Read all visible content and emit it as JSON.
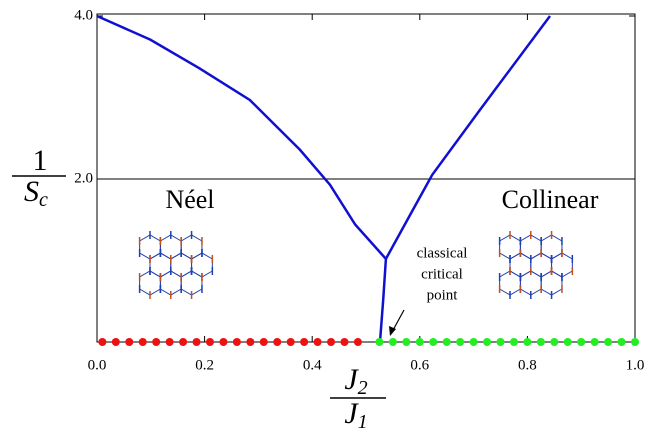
{
  "chart_data": {
    "type": "line",
    "xlim": [
      0,
      1.0
    ],
    "ylim": [
      0,
      4.0
    ],
    "xticks": [
      {
        "value": 0,
        "label": "0.0"
      },
      {
        "value": 0.2,
        "label": "0.2"
      },
      {
        "value": 0.4,
        "label": "0.4"
      },
      {
        "value": 0.6,
        "label": "0.6"
      },
      {
        "value": 0.8,
        "label": "0.8"
      },
      {
        "value": 1.0,
        "label": "1.0"
      }
    ],
    "yticks": [
      {
        "value": 2,
        "label": "2.0"
      },
      {
        "value": 4,
        "label": "4.0"
      }
    ],
    "reference_line": 2.0,
    "x_label": {
      "numerator": "J",
      "numerator_subscript": "2",
      "denominator": "J",
      "denominator_subscript": "1"
    },
    "y_label": {
      "numerator": "1",
      "denominator": "S",
      "denominator_subscript": "c"
    },
    "annotations": {
      "left_phase": "Néel",
      "right_phase": "Collinear",
      "critical_point": [
        "classical",
        "critical",
        "point"
      ]
    },
    "series": [
      {
        "mode": "line",
        "color": "#1010d0",
        "x": [
          0,
          0.099,
          0.19,
          0.284,
          0.377,
          0.433,
          0.48,
          0.537,
          0.532,
          0.526
        ],
        "values": [
          4.0,
          3.71,
          3.36,
          2.97,
          2.36,
          1.93,
          1.44,
          1.02,
          0.52,
          0
        ]
      },
      {
        "mode": "line",
        "color": "#1010d0",
        "x": [
          0.537,
          0.582,
          0.623,
          0.712,
          0.842
        ],
        "values": [
          1.02,
          1.56,
          2.05,
          2.85,
          4.0
        ]
      },
      {
        "mode": "markers",
        "color": "#ee1111",
        "x": [
          0.01,
          0.035,
          0.06,
          0.085,
          0.11,
          0.135,
          0.16,
          0.185,
          0.21,
          0.235,
          0.26,
          0.285,
          0.31,
          0.335,
          0.36,
          0.385,
          0.41,
          0.435,
          0.46,
          0.485
        ],
        "values": [
          0,
          0,
          0,
          0,
          0,
          0,
          0,
          0,
          0,
          0,
          0,
          0,
          0,
          0,
          0,
          0,
          0,
          0,
          0,
          0
        ]
      },
      {
        "mode": "markers",
        "color": "#22ee22",
        "x": [
          0.525,
          0.55,
          0.575,
          0.6,
          0.625,
          0.65,
          0.675,
          0.7,
          0.725,
          0.75,
          0.775,
          0.8,
          0.825,
          0.85,
          0.875,
          0.9,
          0.925,
          0.95,
          0.975,
          1.0
        ],
        "values": [
          0,
          0,
          0,
          0,
          0,
          0,
          0,
          0,
          0,
          0,
          0,
          0,
          0,
          0,
          0,
          0,
          0,
          0,
          0,
          0
        ]
      }
    ]
  }
}
